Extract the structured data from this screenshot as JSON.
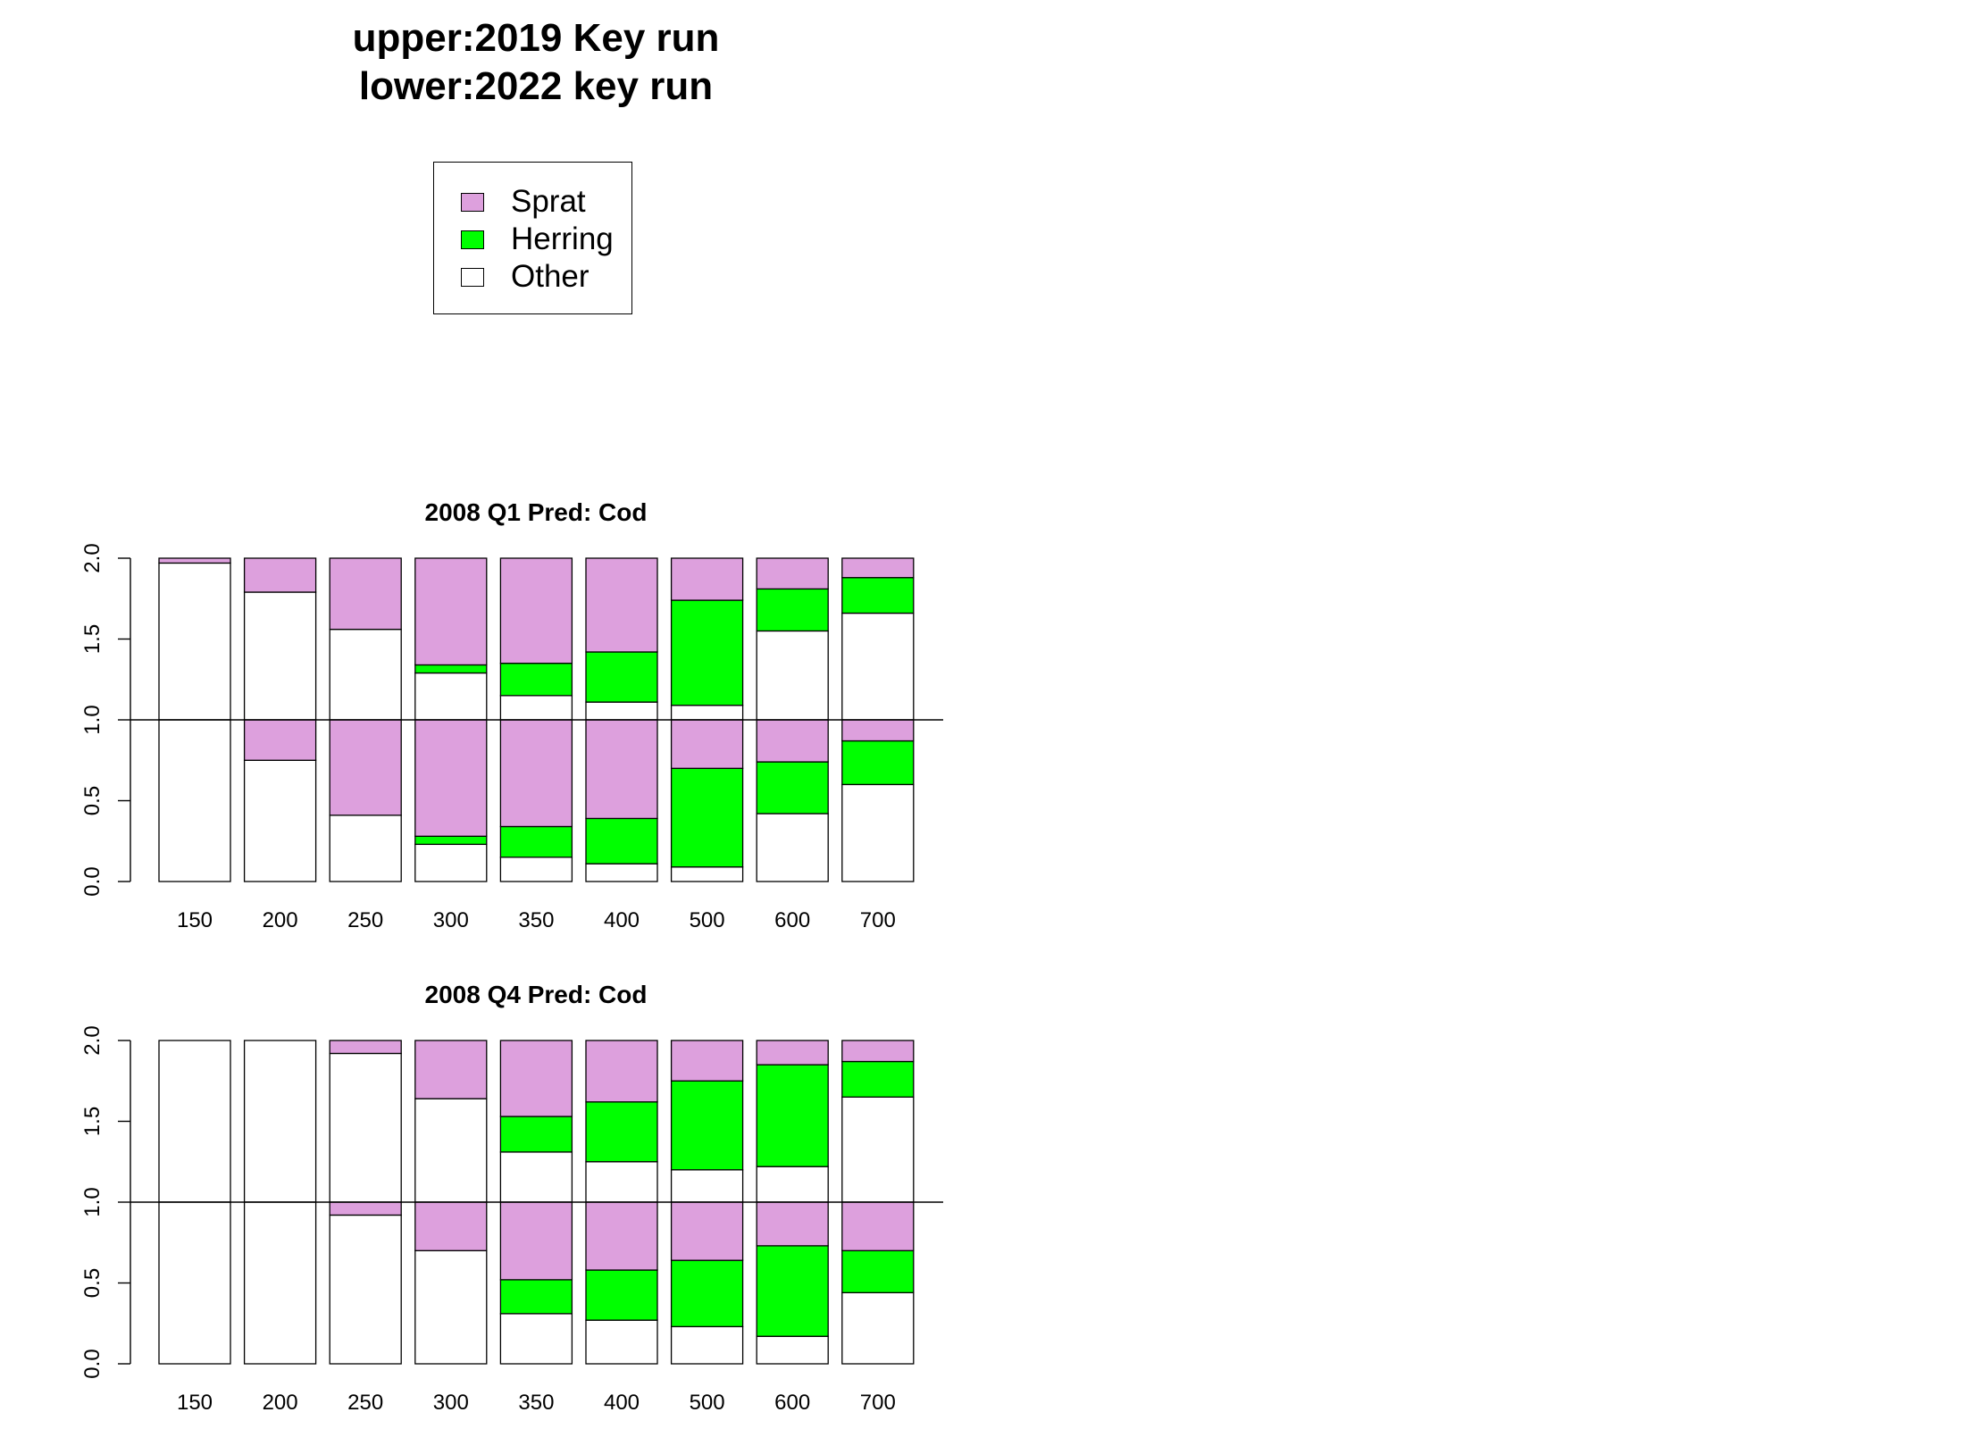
{
  "figure": {
    "title_line1": "upper:2019 Key run",
    "title_line2": "lower:2022 key run"
  },
  "legend": {
    "items": [
      {
        "label": "Sprat",
        "color": "#DDA0DD"
      },
      {
        "label": "Herring",
        "color": "#00FF00"
      },
      {
        "label": "Other",
        "color": "#FFFFFF"
      }
    ]
  },
  "chart_data": [
    {
      "type": "bar",
      "stacked": true,
      "title": "2008 Q1  Pred: Cod",
      "categories": [
        "150",
        "200",
        "250",
        "300",
        "350",
        "400",
        "500",
        "600",
        "700"
      ],
      "ylim": [
        0,
        2
      ],
      "yticks": [
        "0.0",
        "0.5",
        "1.0",
        "1.5",
        "2.0"
      ],
      "reference_line": 1.0,
      "upper_label": "upper:2019 Key run",
      "lower_label": "lower:2022 key run",
      "upper": {
        "Other": [
          0.97,
          0.79,
          0.56,
          0.29,
          0.15,
          0.11,
          0.09,
          0.55,
          0.66
        ],
        "Herring": [
          0.0,
          0.0,
          0.0,
          0.05,
          0.2,
          0.31,
          0.65,
          0.26,
          0.22
        ],
        "Sprat": [
          0.03,
          0.21,
          0.44,
          0.66,
          0.65,
          0.58,
          0.26,
          0.19,
          0.12
        ]
      },
      "lower": {
        "Other": [
          1.0,
          0.75,
          0.41,
          0.23,
          0.15,
          0.11,
          0.09,
          0.42,
          0.6
        ],
        "Herring": [
          0.0,
          0.0,
          0.0,
          0.05,
          0.19,
          0.28,
          0.61,
          0.32,
          0.27
        ],
        "Sprat": [
          0.0,
          0.25,
          0.59,
          0.72,
          0.66,
          0.61,
          0.3,
          0.26,
          0.13
        ]
      }
    },
    {
      "type": "bar",
      "stacked": true,
      "title": "2008 Q4  Pred: Cod",
      "categories": [
        "150",
        "200",
        "250",
        "300",
        "350",
        "400",
        "500",
        "600",
        "700"
      ],
      "ylim": [
        0,
        2
      ],
      "yticks": [
        "0.0",
        "0.5",
        "1.0",
        "1.5",
        "2.0"
      ],
      "reference_line": 1.0,
      "upper_label": "upper:2019 Key run",
      "lower_label": "lower:2022 key run",
      "upper": {
        "Other": [
          1.0,
          1.0,
          0.92,
          0.64,
          0.31,
          0.25,
          0.2,
          0.22,
          0.65
        ],
        "Herring": [
          0.0,
          0.0,
          0.0,
          0.0,
          0.22,
          0.37,
          0.55,
          0.63,
          0.22
        ],
        "Sprat": [
          0.0,
          0.0,
          0.08,
          0.36,
          0.47,
          0.38,
          0.25,
          0.15,
          0.13
        ]
      },
      "lower": {
        "Other": [
          1.0,
          1.0,
          0.92,
          0.7,
          0.31,
          0.27,
          0.23,
          0.17,
          0.44
        ],
        "Herring": [
          0.0,
          0.0,
          0.0,
          0.0,
          0.21,
          0.31,
          0.41,
          0.56,
          0.26
        ],
        "Sprat": [
          0.0,
          0.0,
          0.08,
          0.3,
          0.48,
          0.42,
          0.36,
          0.27,
          0.3
        ]
      }
    }
  ]
}
